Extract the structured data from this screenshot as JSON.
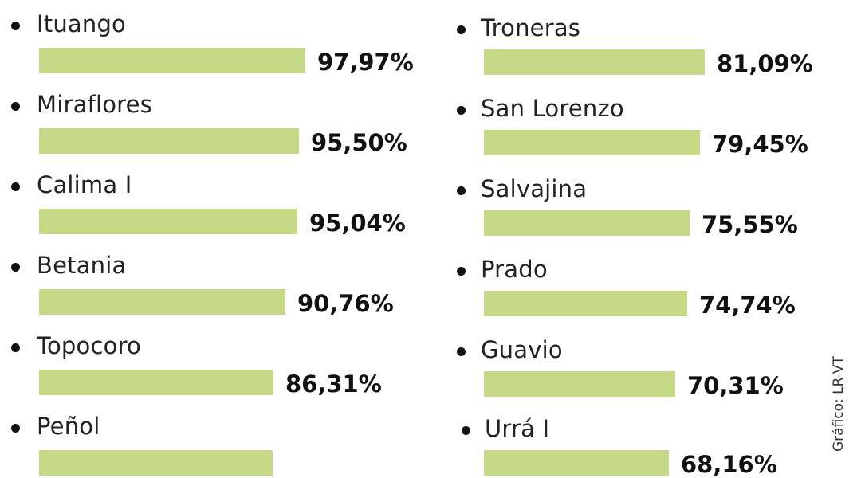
{
  "chart_data": {
    "type": "bar",
    "orientation": "horizontal",
    "bar_color": "#c5d986",
    "columns": [
      {
        "items": [
          {
            "name": "Ituango",
            "value": 97.97,
            "label": "97,97%"
          },
          {
            "name": "Miraflores",
            "value": 95.5,
            "label": "95,50%"
          },
          {
            "name": "Calima I",
            "value": 95.04,
            "label": "95,04%"
          },
          {
            "name": "Betania",
            "value": 90.76,
            "label": "90,76%"
          },
          {
            "name": "Topocoro",
            "value": 86.31,
            "label": "86,31%"
          },
          {
            "name": "Peñol",
            "value": 86.0,
            "label": ""
          }
        ]
      },
      {
        "items": [
          {
            "name": "Troneras",
            "value": 81.09,
            "label": "81,09%"
          },
          {
            "name": "San Lorenzo",
            "value": 79.45,
            "label": "79,45%"
          },
          {
            "name": "Salvajina",
            "value": 75.55,
            "label": "75,55%"
          },
          {
            "name": "Prado",
            "value": 74.74,
            "label": "74,74%"
          },
          {
            "name": "Guavio",
            "value": 70.31,
            "label": "70,31%"
          },
          {
            "name": "Urrá I",
            "value": 68.16,
            "label": "68,16%"
          }
        ]
      }
    ]
  },
  "credit": "Gráfico: LR-VT"
}
